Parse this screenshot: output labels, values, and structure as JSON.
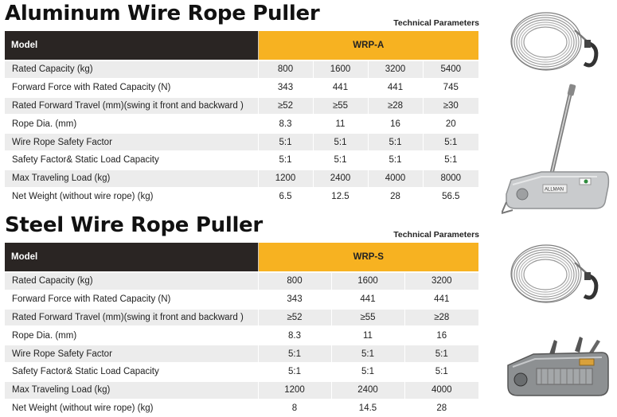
{
  "aluminum": {
    "title": "Aluminum Wire Rope Puller",
    "tech_label": "Technical Parameters",
    "header": {
      "model_label": "Model",
      "model_name": "WRP-A"
    },
    "rows": [
      {
        "label": "Rated Capacity (kg)",
        "values": [
          "800",
          "1600",
          "3200",
          "5400"
        ]
      },
      {
        "label": "Forward Force with Rated Capacity (N)",
        "values": [
          "343",
          "441",
          "441",
          "745"
        ]
      },
      {
        "label": "Rated Forward Travel (mm)(swing it front and backward )",
        "values": [
          "≥52",
          "≥55",
          "≥28",
          "≥30"
        ]
      },
      {
        "label": "Rope Dia. (mm)",
        "values": [
          "8.3",
          "11",
          "16",
          "20"
        ]
      },
      {
        "label": "Wire Rope Safety Factor",
        "values": [
          "5:1",
          "5:1",
          "5:1",
          "5:1"
        ]
      },
      {
        "label": "Safety Factor& Static Load Capacity",
        "values": [
          "5:1",
          "5:1",
          "5:1",
          "5:1"
        ]
      },
      {
        "label": "Max Traveling Load (kg)",
        "values": [
          "1200",
          "2400",
          "4000",
          "8000"
        ]
      },
      {
        "label": "Net Weight (without wire rope) (kg)",
        "values": [
          "6.5",
          "12.5",
          "28",
          "56.5"
        ]
      }
    ],
    "brand": "ALLMAN"
  },
  "steel": {
    "title": "Steel Wire Rope Puller",
    "tech_label": "Technical Parameters",
    "header": {
      "model_label": "Model",
      "model_name": "WRP-S"
    },
    "rows": [
      {
        "label": "Rated Capacity (kg)",
        "values": [
          "800",
          "1600",
          "3200"
        ]
      },
      {
        "label": "Forward Force with Rated Capacity (N)",
        "values": [
          "343",
          "441",
          "441"
        ]
      },
      {
        "label": "Rated Forward Travel (mm)(swing it front and backward )",
        "values": [
          "≥52",
          "≥55",
          "≥28"
        ]
      },
      {
        "label": "Rope Dia. (mm)",
        "values": [
          "8.3",
          "11",
          "16"
        ]
      },
      {
        "label": "Wire Rope Safety Factor",
        "values": [
          "5:1",
          "5:1",
          "5:1"
        ]
      },
      {
        "label": "Safety Factor& Static Load Capacity",
        "values": [
          "5:1",
          "5:1",
          "5:1"
        ]
      },
      {
        "label": "Max Traveling Load (kg)",
        "values": [
          "1200",
          "2400",
          "4000"
        ]
      },
      {
        "label": "Net Weight (without wire rope) (kg)",
        "values": [
          "8",
          "14.5",
          "28"
        ]
      }
    ]
  },
  "images": {
    "coil": "wire-rope-coil-with-hook",
    "aluminum_puller": "aluminum-wire-rope-puller",
    "steel_puller": "steel-wire-rope-puller"
  },
  "colors": {
    "header_dark": "#2a2523",
    "header_accent": "#f7b221",
    "row_alt": "#ececec"
  }
}
